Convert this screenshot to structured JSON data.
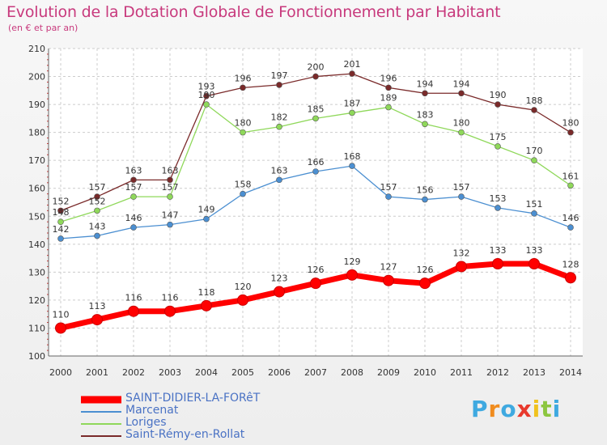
{
  "title": "Evolution de la Dotation Globale de Fonctionnement par Habitant",
  "subtitle": "(en € et par an)",
  "logo": {
    "letters": [
      "P",
      "r",
      "o",
      "x",
      "i",
      "t",
      "i"
    ],
    "colors": [
      "#3fa9e0",
      "#f08c1e",
      "#3fa9e0",
      "#e8392d",
      "#f0c21e",
      "#8cc63f",
      "#3fa9e0"
    ]
  },
  "chart_data": {
    "type": "line",
    "title": "Evolution de la Dotation Globale de Fonctionnement par Habitant",
    "subtitle": "(en € et par an)",
    "x": [
      "2000",
      "2001",
      "2002",
      "2003",
      "2004",
      "2005",
      "2006",
      "2007",
      "2008",
      "2009",
      "2010",
      "2011",
      "2012",
      "2013",
      "2014"
    ],
    "ylim": [
      100,
      210
    ],
    "yticks": [
      100,
      110,
      120,
      130,
      140,
      150,
      160,
      170,
      180,
      190,
      200,
      210
    ],
    "grid": true,
    "legend_placement": "bottom-left",
    "series": [
      {
        "name": "SAINT-DIDIER-LA-FORêT",
        "color": "#ff0000",
        "values": [
          110,
          113,
          116,
          116,
          118,
          120,
          123,
          126,
          129,
          127,
          126,
          132,
          133,
          133,
          128
        ]
      },
      {
        "name": "Marcenat",
        "color": "#4b8fd1",
        "values": [
          142,
          143,
          146,
          147,
          149,
          158,
          163,
          166,
          168,
          157,
          156,
          157,
          153,
          151,
          146
        ]
      },
      {
        "name": "Loriges",
        "color": "#8fd85a",
        "values": [
          148,
          152,
          157,
          157,
          190,
          180,
          182,
          185,
          187,
          189,
          183,
          180,
          175,
          170,
          161
        ]
      },
      {
        "name": "Saint-Rémy-en-Rollat",
        "color": "#7a2a2a",
        "values": [
          152,
          157,
          163,
          163,
          193,
          196,
          197,
          200,
          201,
          196,
          194,
          194,
          190,
          188,
          180
        ]
      }
    ]
  }
}
